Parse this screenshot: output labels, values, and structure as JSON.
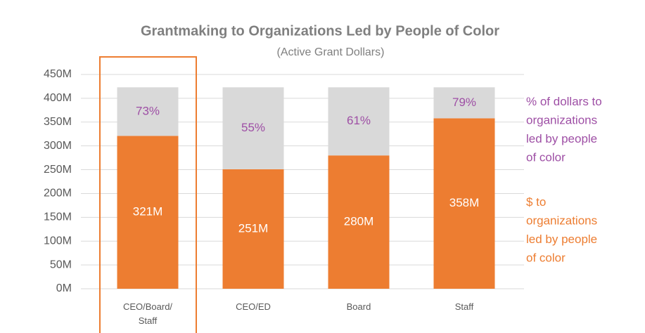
{
  "chart_data": {
    "type": "stacked_bar",
    "title": "Grantmaking to Organizations Led by People of Color",
    "subtitle": "(Active Grant Dollars)",
    "categories": [
      "CEO/Board/Staff",
      "CEO/ED",
      "Board",
      "Staff"
    ],
    "series": [
      {
        "name": "$ to organizations led by people of color",
        "color": "#ed7d31",
        "values": [
          321,
          251,
          280,
          358
        ],
        "value_labels": [
          "321M",
          "251M",
          "280M",
          "358M"
        ]
      },
      {
        "name": "% of dollars to organizations led by people of color",
        "color": "#d9d9d9",
        "label_color": "#9e4fa5",
        "values": [
          102,
          172,
          143,
          65
        ],
        "value_labels": [
          "73%",
          "55%",
          "61%",
          "79%"
        ]
      }
    ],
    "ylim": [
      0,
      450
    ],
    "yticks": [
      {
        "value": 0,
        "label": "0M"
      },
      {
        "value": 50,
        "label": "50M"
      },
      {
        "value": 100,
        "label": "100M"
      },
      {
        "value": 150,
        "label": "150M"
      },
      {
        "value": 200,
        "label": "200M"
      },
      {
        "value": 250,
        "label": "250M"
      },
      {
        "value": 300,
        "label": "300M"
      },
      {
        "value": 350,
        "label": "350M"
      },
      {
        "value": 400,
        "label": "400M"
      },
      {
        "value": 450,
        "label": "450M"
      }
    ],
    "grid": true,
    "highlight_category": 0
  }
}
